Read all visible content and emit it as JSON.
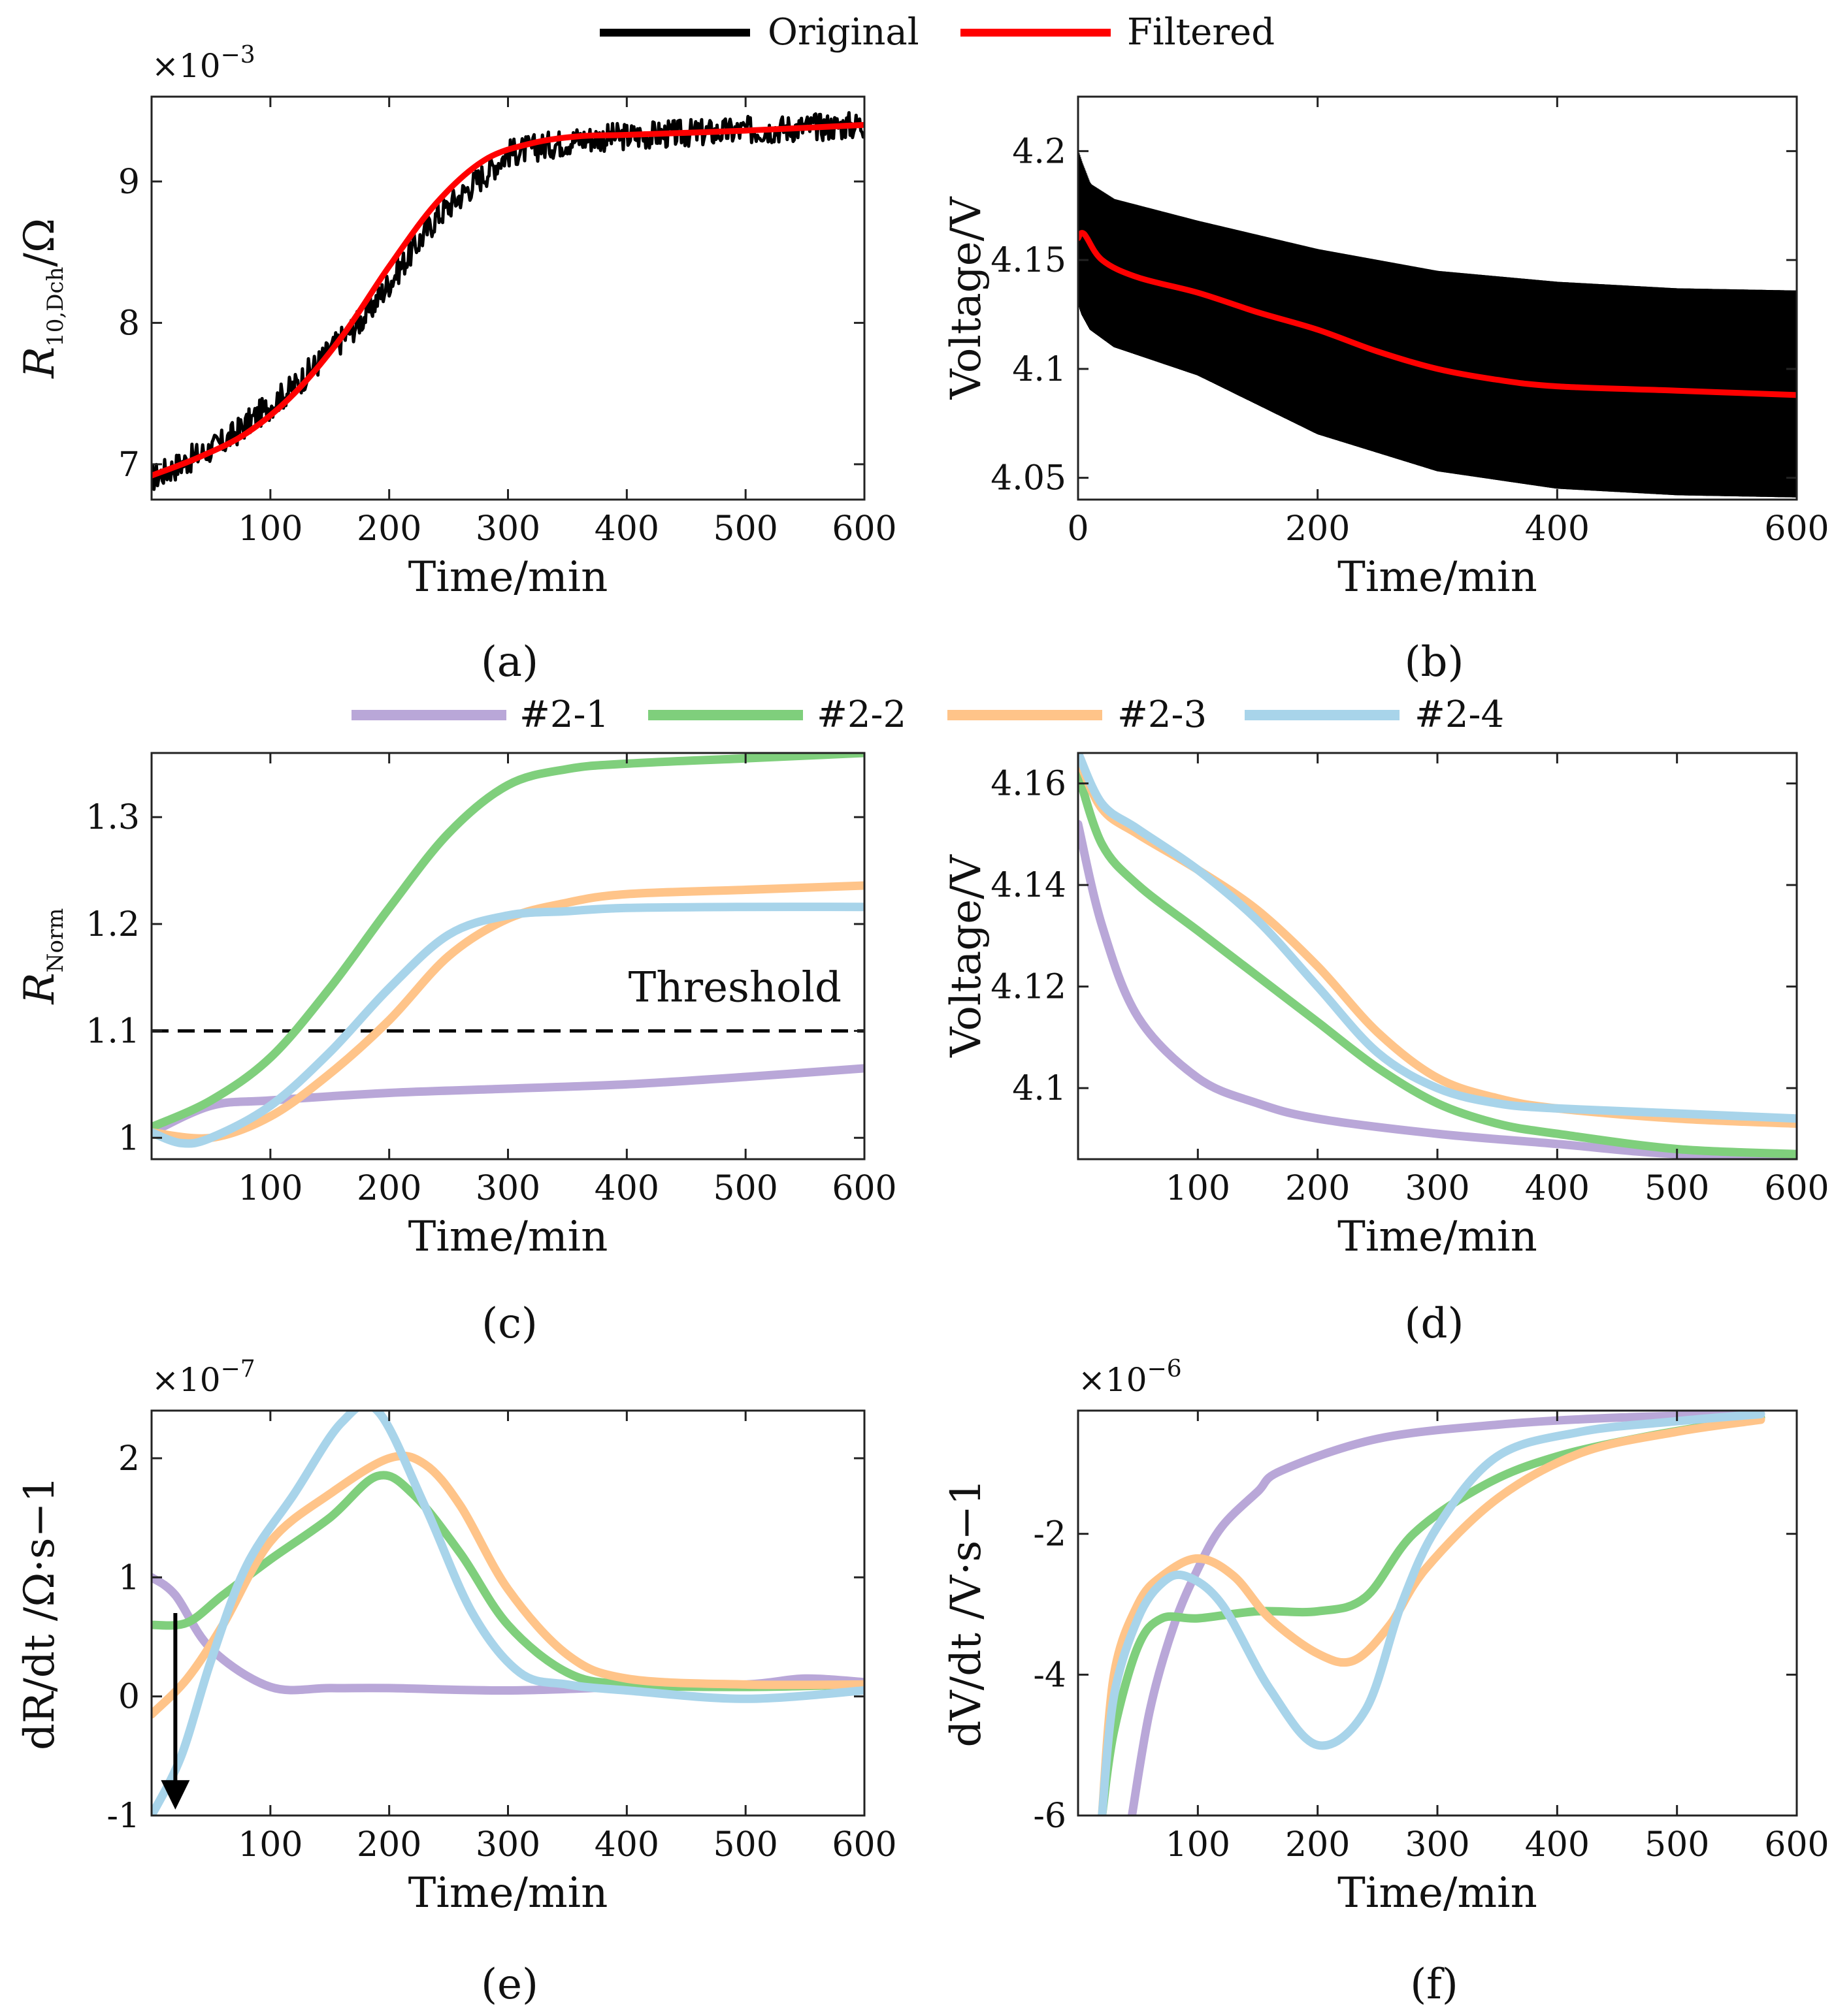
{
  "legend_top": {
    "items": [
      {
        "label": "Original",
        "color": "#000000"
      },
      {
        "label": "Filtered",
        "color": "#ff0000"
      }
    ]
  },
  "legend_mid": {
    "items": [
      {
        "label": "#2-1",
        "color": "#b9a7d8"
      },
      {
        "label": "#2-2",
        "color": "#7fcf7c"
      },
      {
        "label": "#2-3",
        "color": "#ffc489"
      },
      {
        "label": "#2-4",
        "color": "#a8d4ea"
      }
    ]
  },
  "chart_data": [
    {
      "id": "a",
      "type": "line",
      "panel_label": "(a)",
      "xlabel": "Time/min",
      "ylabel": "R10,Dch/Ω",
      "ylabel_parts": {
        "main": "R",
        "sub": "10,Dch",
        "rest": "/Ω"
      },
      "multiplier": {
        "base": "×10",
        "exp": "−3"
      },
      "xlim": [
        0,
        600
      ],
      "ylim": [
        6.75,
        9.6
      ],
      "xticks": [
        100,
        200,
        300,
        400,
        500,
        600
      ],
      "yticks": [
        7,
        8,
        9
      ],
      "series": [
        {
          "name": "Original",
          "color": "#000000",
          "x": [
            0,
            60,
            120,
            180,
            240,
            300,
            360,
            420,
            480,
            540,
            600
          ],
          "y": [
            6.9,
            7.15,
            7.55,
            8.05,
            8.75,
            9.2,
            9.3,
            9.33,
            9.35,
            9.38,
            9.4
          ],
          "noise": 0.1
        },
        {
          "name": "Filtered",
          "color": "#ff0000",
          "x": [
            0,
            40,
            80,
            120,
            160,
            200,
            240,
            280,
            320,
            360,
            400,
            500,
            600
          ],
          "y": [
            6.92,
            7.05,
            7.22,
            7.5,
            7.9,
            8.4,
            8.85,
            9.15,
            9.27,
            9.32,
            9.33,
            9.36,
            9.4
          ]
        }
      ]
    },
    {
      "id": "b",
      "type": "line",
      "panel_label": "(b)",
      "xlabel": "Time/min",
      "ylabel": "Voltage/V",
      "xlim": [
        0,
        600
      ],
      "ylim": [
        4.04,
        4.225
      ],
      "xticks": [
        0,
        200,
        400,
        600
      ],
      "yticks": [
        4.05,
        4.1,
        4.15,
        4.2
      ],
      "series": [
        {
          "name": "Original",
          "color": "#000000",
          "band": true,
          "x": [
            0,
            3,
            10,
            30,
            100,
            200,
            300,
            400,
            500,
            600
          ],
          "y_upper": [
            4.2,
            4.195,
            4.185,
            4.178,
            4.168,
            4.155,
            4.145,
            4.14,
            4.137,
            4.136
          ],
          "y_lower": [
            4.13,
            4.125,
            4.118,
            4.11,
            4.097,
            4.07,
            4.053,
            4.045,
            4.042,
            4.041
          ]
        },
        {
          "name": "Filtered",
          "color": "#ff0000",
          "x": [
            0,
            5,
            20,
            50,
            100,
            150,
            200,
            250,
            300,
            350,
            400,
            500,
            600
          ],
          "y": [
            4.16,
            4.162,
            4.15,
            4.142,
            4.135,
            4.126,
            4.118,
            4.108,
            4.1,
            4.095,
            4.092,
            4.09,
            4.088
          ]
        }
      ]
    },
    {
      "id": "c",
      "type": "line",
      "panel_label": "(c)",
      "xlabel": "Time/min",
      "ylabel": "RNorm",
      "ylabel_parts": {
        "main": "R",
        "sub": "Norm"
      },
      "xlim": [
        0,
        600
      ],
      "ylim": [
        0.98,
        1.36
      ],
      "xticks": [
        100,
        200,
        300,
        400,
        500,
        600
      ],
      "yticks": [
        1.0,
        1.1,
        1.2,
        1.3
      ],
      "yticklabels": [
        "1",
        "1.1",
        "1.2",
        "1.3"
      ],
      "annotation": {
        "text": "Threshold",
        "y": 1.1
      },
      "series": [
        {
          "name": "#2-1",
          "color": "#b9a7d8",
          "x": [
            0,
            50,
            100,
            200,
            300,
            400,
            500,
            600
          ],
          "y": [
            1.005,
            1.03,
            1.035,
            1.042,
            1.046,
            1.05,
            1.057,
            1.065
          ]
        },
        {
          "name": "#2-2",
          "color": "#7fcf7c",
          "x": [
            0,
            50,
            100,
            150,
            200,
            250,
            300,
            350,
            400,
            500,
            600
          ],
          "y": [
            1.01,
            1.035,
            1.075,
            1.14,
            1.215,
            1.285,
            1.33,
            1.345,
            1.35,
            1.355,
            1.36
          ]
        },
        {
          "name": "#2-3",
          "color": "#ffc489",
          "x": [
            0,
            50,
            100,
            150,
            200,
            250,
            300,
            350,
            400,
            500,
            600
          ],
          "y": [
            1.005,
            1.0,
            1.02,
            1.06,
            1.11,
            1.17,
            1.205,
            1.22,
            1.228,
            1.232,
            1.236
          ]
        },
        {
          "name": "#2-4",
          "color": "#a8d4ea",
          "x": [
            0,
            25,
            50,
            100,
            150,
            200,
            250,
            300,
            350,
            400,
            500,
            600
          ],
          "y": [
            1.005,
            0.995,
            1.0,
            1.03,
            1.08,
            1.14,
            1.19,
            1.208,
            1.212,
            1.215,
            1.216,
            1.216
          ]
        }
      ]
    },
    {
      "id": "d",
      "type": "line",
      "panel_label": "(d)",
      "xlabel": "Time/min",
      "ylabel": "Voltage/V",
      "xlim": [
        0,
        600
      ],
      "ylim": [
        4.086,
        4.166
      ],
      "xticks": [
        100,
        200,
        300,
        400,
        500,
        600
      ],
      "yticks": [
        4.1,
        4.12,
        4.14,
        4.16
      ],
      "series": [
        {
          "name": "#2-1",
          "color": "#b9a7d8",
          "x": [
            0,
            20,
            50,
            100,
            150,
            200,
            300,
            400,
            500,
            600
          ],
          "y": [
            4.152,
            4.132,
            4.114,
            4.102,
            4.097,
            4.094,
            4.091,
            4.089,
            4.087,
            4.087
          ]
        },
        {
          "name": "#2-2",
          "color": "#7fcf7c",
          "x": [
            0,
            20,
            50,
            100,
            150,
            200,
            250,
            300,
            350,
            400,
            500,
            600
          ],
          "y": [
            4.162,
            4.148,
            4.14,
            4.131,
            4.122,
            4.113,
            4.104,
            4.097,
            4.093,
            4.091,
            4.088,
            4.087
          ]
        },
        {
          "name": "#2-3",
          "color": "#ffc489",
          "x": [
            0,
            20,
            50,
            100,
            150,
            200,
            250,
            300,
            350,
            400,
            500,
            600
          ],
          "y": [
            4.165,
            4.155,
            4.15,
            4.143,
            4.135,
            4.124,
            4.111,
            4.102,
            4.098,
            4.096,
            4.094,
            4.093
          ]
        },
        {
          "name": "#2-4",
          "color": "#a8d4ea",
          "x": [
            0,
            20,
            50,
            100,
            150,
            200,
            250,
            300,
            350,
            400,
            500,
            600
          ],
          "y": [
            4.166,
            4.156,
            4.151,
            4.143,
            4.133,
            4.12,
            4.107,
            4.1,
            4.097,
            4.096,
            4.095,
            4.094
          ]
        }
      ]
    },
    {
      "id": "e",
      "type": "line",
      "panel_label": "(e)",
      "xlabel": "Time/min",
      "ylabel": "dR/dt /Ω·s−1",
      "multiplier": {
        "base": "×10",
        "exp": "−7"
      },
      "xlim": [
        0,
        600
      ],
      "ylim": [
        -1.0,
        2.4
      ],
      "xticks": [
        100,
        200,
        300,
        400,
        500,
        600
      ],
      "yticks": [
        -1,
        0,
        1,
        2
      ],
      "annotation": {
        "type": "arrow",
        "x": 20,
        "from": 0.7,
        "to": -0.95
      },
      "series": [
        {
          "name": "#2-1",
          "color": "#b9a7d8",
          "x": [
            0,
            20,
            50,
            100,
            150,
            200,
            300,
            400,
            500,
            550,
            600
          ],
          "y": [
            1.0,
            0.85,
            0.4,
            0.08,
            0.07,
            0.07,
            0.05,
            0.08,
            0.1,
            0.15,
            0.12
          ]
        },
        {
          "name": "#2-2",
          "color": "#7fcf7c",
          "x": [
            0,
            30,
            60,
            100,
            150,
            190,
            220,
            260,
            300,
            350,
            400,
            500,
            600
          ],
          "y": [
            0.6,
            0.62,
            0.85,
            1.15,
            1.5,
            1.85,
            1.7,
            1.2,
            0.6,
            0.2,
            0.1,
            0.08,
            0.1
          ]
        },
        {
          "name": "#2-3",
          "color": "#ffc489",
          "x": [
            0,
            30,
            60,
            100,
            150,
            200,
            230,
            260,
            300,
            350,
            400,
            500,
            600
          ],
          "y": [
            -0.15,
            0.15,
            0.6,
            1.3,
            1.7,
            2.0,
            1.95,
            1.6,
            0.9,
            0.35,
            0.15,
            0.1,
            0.1
          ]
        },
        {
          "name": "#2-4",
          "color": "#a8d4ea",
          "x": [
            0,
            25,
            50,
            80,
            120,
            160,
            190,
            230,
            270,
            310,
            350,
            400,
            500,
            600
          ],
          "y": [
            -1.0,
            -0.5,
            0.3,
            1.1,
            1.7,
            2.3,
            2.4,
            1.6,
            0.7,
            0.2,
            0.1,
            0.05,
            -0.02,
            0.05
          ]
        }
      ]
    },
    {
      "id": "f",
      "type": "line",
      "panel_label": "(f)",
      "xlabel": "Time/min",
      "ylabel": "dV/dt /V·s−1",
      "multiplier": {
        "base": "×10",
        "exp": "−6"
      },
      "xlim": [
        0,
        600
      ],
      "ylim": [
        -6.0,
        -0.25
      ],
      "xticks": [
        100,
        200,
        300,
        400,
        500,
        600
      ],
      "yticks": [
        -6,
        -4,
        -2
      ],
      "series": [
        {
          "name": "#2-1",
          "color": "#b9a7d8",
          "x": [
            45,
            60,
            80,
            100,
            120,
            150,
            170,
            250,
            350,
            450,
            570
          ],
          "y": [
            -6.0,
            -4.5,
            -3.3,
            -2.5,
            -1.9,
            -1.4,
            -1.1,
            -0.65,
            -0.45,
            -0.35,
            -0.3
          ]
        },
        {
          "name": "#2-2",
          "color": "#7fcf7c",
          "x": [
            20,
            30,
            50,
            70,
            100,
            150,
            200,
            240,
            280,
            340,
            400,
            480,
            570
          ],
          "y": [
            -6.0,
            -4.8,
            -3.6,
            -3.2,
            -3.2,
            -3.1,
            -3.1,
            -2.9,
            -2.0,
            -1.3,
            -0.9,
            -0.6,
            -0.35
          ]
        },
        {
          "name": "#2-3",
          "color": "#ffc489",
          "x": [
            20,
            30,
            50,
            70,
            100,
            130,
            160,
            200,
            230,
            260,
            290,
            350,
            420,
            500,
            570
          ],
          "y": [
            -6.0,
            -4.0,
            -3.0,
            -2.6,
            -2.35,
            -2.6,
            -3.2,
            -3.7,
            -3.8,
            -3.3,
            -2.5,
            -1.5,
            -0.85,
            -0.55,
            -0.38
          ]
        },
        {
          "name": "#2-4",
          "color": "#a8d4ea",
          "x": [
            20,
            30,
            50,
            70,
            90,
            120,
            160,
            200,
            240,
            270,
            300,
            350,
            420,
            500,
            570
          ],
          "y": [
            -6.0,
            -4.3,
            -3.2,
            -2.7,
            -2.6,
            -3.0,
            -4.2,
            -5.0,
            -4.5,
            -3.0,
            -1.9,
            -0.9,
            -0.55,
            -0.4,
            -0.3
          ]
        }
      ]
    }
  ]
}
